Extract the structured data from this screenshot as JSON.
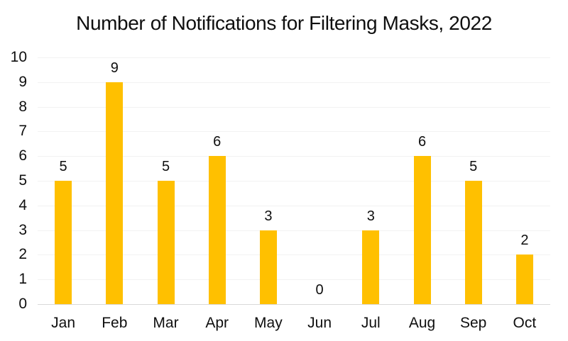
{
  "page": {
    "background": "#FFFFFF"
  },
  "chart_data": {
    "type": "bar",
    "title": "Number of Notifications for Filtering Masks, 2022",
    "categories": [
      "Jan",
      "Feb",
      "Mar",
      "Apr",
      "May",
      "Jun",
      "Jul",
      "Aug",
      "Sep",
      "Oct"
    ],
    "values": [
      5,
      9,
      5,
      6,
      3,
      0,
      3,
      6,
      5,
      2
    ],
    "xlabel": "",
    "ylabel": "",
    "ylim": [
      0,
      10
    ],
    "yticks": [
      0,
      1,
      2,
      3,
      4,
      5,
      6,
      7,
      8,
      9,
      10
    ],
    "grid": true,
    "legend_position": "none",
    "data_labels": true,
    "colors": {
      "bar": "#FFC000",
      "gridline": "#F2F2F2",
      "axis_line": "#D9D9D9",
      "text": "#0F0F0F",
      "background": "#FFFFFF"
    }
  }
}
